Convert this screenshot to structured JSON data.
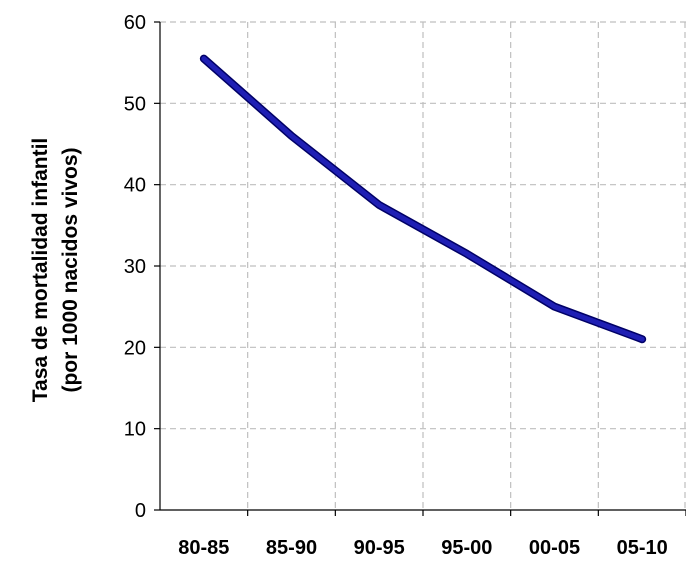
{
  "chart_data": {
    "type": "line",
    "title": "",
    "xlabel": "",
    "ylabel_line1": "Tasa de mortalidad infantil",
    "ylabel_line2": "(por 1000 nacidos vivos)",
    "categories": [
      "80-85",
      "85-90",
      "90-95",
      "95-00",
      "00-05",
      "05-10"
    ],
    "series": [
      {
        "values": [
          55.5,
          46,
          37.5,
          31.5,
          25,
          21
        ],
        "color": "#1f1fb4",
        "edge_color": "#000066"
      }
    ],
    "ylim": [
      0,
      60
    ],
    "yticks": [
      "0",
      "10",
      "20",
      "30",
      "40",
      "50",
      "60"
    ],
    "grid": true,
    "grid_color": "#bfbfbf"
  }
}
